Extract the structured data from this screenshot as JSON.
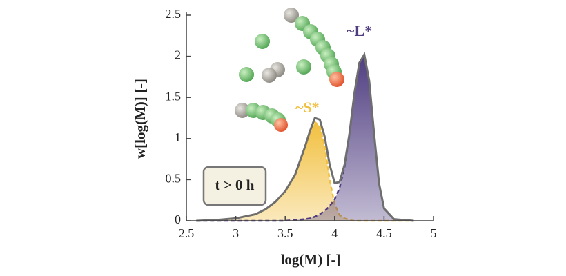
{
  "chart_data": {
    "type": "area",
    "x_label": "log(M) [-]",
    "y_label": "w[log(M)] [-]",
    "annotation": "t > 0 h",
    "xlim": [
      2.5,
      5
    ],
    "xticks": [
      2.5,
      3,
      3.5,
      4,
      4.5,
      5
    ],
    "ylim": [
      0,
      2.5
    ],
    "yticks": [
      0,
      0.5,
      1,
      1.5,
      2,
      2.5
    ],
    "x": [
      2.6,
      2.8,
      3.0,
      3.2,
      3.3,
      3.4,
      3.5,
      3.6,
      3.7,
      3.75,
      3.8,
      3.85,
      3.9,
      3.95,
      4.0,
      4.05,
      4.1,
      4.15,
      4.2,
      4.25,
      4.3,
      4.35,
      4.4,
      4.45,
      4.5,
      4.6,
      4.8
    ],
    "series": [
      {
        "name": "~S*",
        "color": "#f2c040",
        "style": "area",
        "values": [
          0,
          0.01,
          0.03,
          0.08,
          0.14,
          0.23,
          0.36,
          0.55,
          0.88,
          1.06,
          1.2,
          1.15,
          0.9,
          0.5,
          0.2,
          0.07,
          0.03,
          0.01,
          0,
          0,
          0,
          0,
          0,
          0,
          0,
          0,
          0
        ]
      },
      {
        "name": "~L*",
        "color": "#4f3d80",
        "style": "area",
        "values": [
          0,
          0,
          0,
          0,
          0,
          0,
          0,
          0.01,
          0.02,
          0.03,
          0.05,
          0.08,
          0.12,
          0.18,
          0.26,
          0.4,
          0.65,
          1.05,
          1.55,
          1.92,
          2.02,
          1.7,
          1.05,
          0.45,
          0.15,
          0.02,
          0
        ]
      },
      {
        "color": "#6e6e6e",
        "style": "line",
        "values": [
          0,
          0.01,
          0.03,
          0.08,
          0.14,
          0.23,
          0.36,
          0.56,
          0.9,
          1.09,
          1.25,
          1.23,
          1.02,
          0.68,
          0.46,
          0.47,
          0.68,
          1.06,
          1.55,
          1.92,
          2.02,
          1.7,
          1.05,
          0.45,
          0.15,
          0.02,
          0
        ]
      }
    ]
  }
}
